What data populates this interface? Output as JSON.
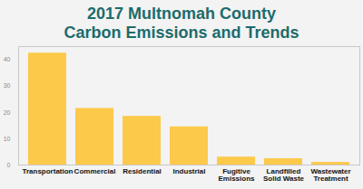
{
  "chart_data": {
    "type": "bar",
    "title": "2017 Multnomah County Carbon Emissions and Trends",
    "categories": [
      "Transportation",
      "Commercial",
      "Residential",
      "Industrial",
      "Fugitive Emissions",
      "Landfilled Solid Waste",
      "Wastewater Treatment"
    ],
    "values": [
      42.5,
      21.5,
      18.5,
      14.5,
      3,
      2.4,
      1
    ],
    "color": "#fdc94a",
    "ylim": [
      0,
      45
    ],
    "yticks": [
      0,
      10,
      20,
      30,
      40
    ],
    "grid": false
  }
}
